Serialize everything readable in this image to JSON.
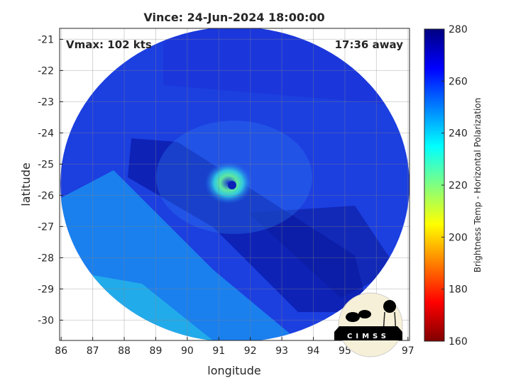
{
  "chart_data": {
    "type": "heatmap",
    "title": "Vince: 24-Jun-2024 18:00:00",
    "xlabel": "longitude",
    "ylabel": "latitude",
    "xlim": [
      85.95,
      97.05
    ],
    "ylim": [
      -30.65,
      -20.65
    ],
    "xticks": [
      86,
      87,
      88,
      89,
      90,
      91,
      92,
      93,
      94,
      95,
      96,
      97
    ],
    "yticks": [
      -21,
      -22,
      -23,
      -24,
      -25,
      -26,
      -27,
      -28,
      -29,
      -30
    ],
    "grid": true,
    "annotations": {
      "vmax": "Vmax: 102 kts",
      "time_away": "17:36 away"
    },
    "storm_center": {
      "lon": 91.35,
      "lat": -25.6
    },
    "colorbar": {
      "label": "Brightness Temp - Horizontal Polarization",
      "range": [
        160,
        280
      ],
      "ticks": [
        160,
        180,
        200,
        220,
        240,
        260,
        280
      ],
      "colormap": "jet"
    },
    "logo": "CIMSS"
  }
}
